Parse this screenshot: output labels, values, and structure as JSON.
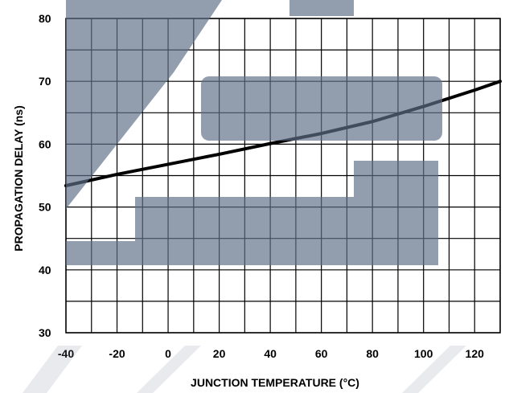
{
  "chart_data": {
    "type": "line",
    "title": "",
    "xlabel": "JUNCTION TEMPERATURE (°C)",
    "ylabel": "PROPAGATION DELAY (ns)",
    "xlim": [
      -40,
      130
    ],
    "ylim": [
      30,
      80
    ],
    "x_ticks": [
      -40,
      -20,
      0,
      20,
      40,
      60,
      80,
      100,
      120
    ],
    "x_tick_labels": [
      "-40",
      "-20",
      "0",
      "20",
      "40",
      "60",
      "80",
      "100",
      "120"
    ],
    "y_ticks": [
      30,
      40,
      50,
      60,
      70,
      80
    ],
    "y_tick_labels": [
      "30",
      "40",
      "50",
      "60",
      "70",
      "80"
    ],
    "grid": true,
    "legend": "none",
    "series": [
      {
        "line_color": "#000000",
        "points": [
          {
            "x": -40,
            "y": 53.4
          },
          {
            "x": -20,
            "y": 55.2
          },
          {
            "x": 0,
            "y": 56.8
          },
          {
            "x": 20,
            "y": 58.4
          },
          {
            "x": 40,
            "y": 60.1
          },
          {
            "x": 60,
            "y": 61.7
          },
          {
            "x": 80,
            "y": 63.6
          },
          {
            "x": 100,
            "y": 66.0
          },
          {
            "x": 120,
            "y": 68.6
          },
          {
            "x": 130,
            "y": 70.0
          }
        ]
      }
    ],
    "colors": {
      "grid": "#000000",
      "background": "#ffffff",
      "watermark": "#5a6b82"
    }
  }
}
